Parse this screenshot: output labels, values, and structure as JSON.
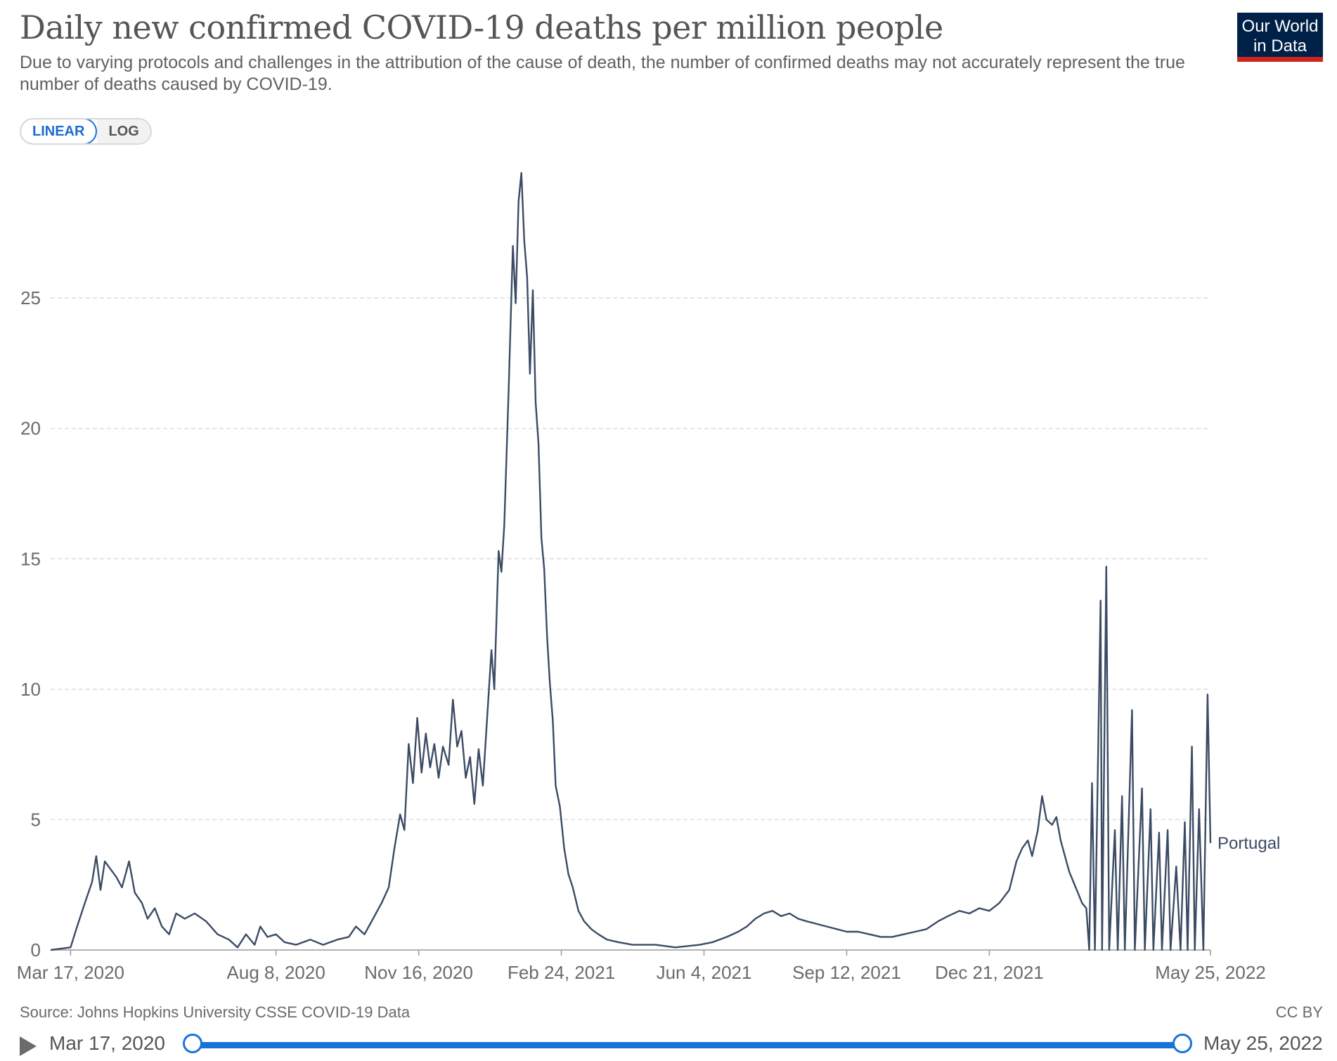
{
  "header": {
    "title": "Daily new confirmed COVID-19 deaths per million people",
    "subtitle": "Due to varying protocols and challenges in the attribution of the cause of death, the number of confirmed deaths may not accurately represent the true number of deaths caused by COVID-19.",
    "logo_line1": "Our World",
    "logo_line2": "in Data"
  },
  "scale_toggle": {
    "linear_label": "LINEAR",
    "log_label": "LOG",
    "selected": "LINEAR"
  },
  "footer": {
    "source": "Source: Johns Hopkins University CSSE COVID-19 Data",
    "license": "CC BY"
  },
  "timeline": {
    "start_label": "Mar 17, 2020",
    "end_label": "May 25, 2022"
  },
  "colors": {
    "line": "#3b4b64",
    "grid": "#dddddd",
    "accent": "#1a73d9",
    "logo_bg": "#002147",
    "logo_bar": "#ce261e"
  },
  "chart_data": {
    "type": "line",
    "x_axis": {
      "type": "date",
      "start": "2020-03-03",
      "end": "2022-05-25",
      "tick_labels": [
        "Mar 17, 2020",
        "Aug 8, 2020",
        "Nov 16, 2020",
        "Feb 24, 2021",
        "Jun 4, 2021",
        "Sep 12, 2021",
        "Dec 21, 2021",
        "May 25, 2022"
      ],
      "tick_dates": [
        "2020-03-17",
        "2020-08-08",
        "2020-11-16",
        "2021-02-24",
        "2021-06-04",
        "2021-09-12",
        "2021-12-21",
        "2022-05-25"
      ]
    },
    "y_axis": {
      "ticks": [
        0,
        5,
        10,
        15,
        20,
        25
      ],
      "ylim": [
        0,
        29.8
      ],
      "grid": true,
      "scale": "linear"
    },
    "series": [
      {
        "name": "Portugal",
        "color": "#3b4b64",
        "points": [
          [
            "2020-03-03",
            0
          ],
          [
            "2020-03-17",
            0.1
          ],
          [
            "2020-03-21",
            0.8
          ],
          [
            "2020-03-27",
            1.8
          ],
          [
            "2020-04-01",
            2.6
          ],
          [
            "2020-04-04",
            3.6
          ],
          [
            "2020-04-07",
            2.3
          ],
          [
            "2020-04-10",
            3.4
          ],
          [
            "2020-04-14",
            3.1
          ],
          [
            "2020-04-18",
            2.8
          ],
          [
            "2020-04-22",
            2.4
          ],
          [
            "2020-04-27",
            3.4
          ],
          [
            "2020-05-01",
            2.2
          ],
          [
            "2020-05-06",
            1.8
          ],
          [
            "2020-05-10",
            1.2
          ],
          [
            "2020-05-15",
            1.6
          ],
          [
            "2020-05-20",
            0.9
          ],
          [
            "2020-05-25",
            0.6
          ],
          [
            "2020-05-30",
            1.4
          ],
          [
            "2020-06-05",
            1.2
          ],
          [
            "2020-06-12",
            1.4
          ],
          [
            "2020-06-20",
            1.1
          ],
          [
            "2020-06-28",
            0.6
          ],
          [
            "2020-07-06",
            0.4
          ],
          [
            "2020-07-12",
            0.1
          ],
          [
            "2020-07-18",
            0.6
          ],
          [
            "2020-07-24",
            0.2
          ],
          [
            "2020-07-28",
            0.9
          ],
          [
            "2020-08-02",
            0.5
          ],
          [
            "2020-08-08",
            0.6
          ],
          [
            "2020-08-14",
            0.3
          ],
          [
            "2020-08-22",
            0.2
          ],
          [
            "2020-09-01",
            0.4
          ],
          [
            "2020-09-10",
            0.2
          ],
          [
            "2020-09-20",
            0.4
          ],
          [
            "2020-09-28",
            0.5
          ],
          [
            "2020-10-03",
            0.9
          ],
          [
            "2020-10-09",
            0.6
          ],
          [
            "2020-10-15",
            1.2
          ],
          [
            "2020-10-21",
            1.8
          ],
          [
            "2020-10-26",
            2.4
          ],
          [
            "2020-10-30",
            3.9
          ],
          [
            "2020-11-03",
            5.2
          ],
          [
            "2020-11-06",
            4.6
          ],
          [
            "2020-11-09",
            7.9
          ],
          [
            "2020-11-12",
            6.4
          ],
          [
            "2020-11-15",
            8.9
          ],
          [
            "2020-11-18",
            6.8
          ],
          [
            "2020-11-21",
            8.3
          ],
          [
            "2020-11-24",
            7.0
          ],
          [
            "2020-11-27",
            7.9
          ],
          [
            "2020-11-30",
            6.6
          ],
          [
            "2020-12-03",
            7.8
          ],
          [
            "2020-12-07",
            7.1
          ],
          [
            "2020-12-10",
            9.6
          ],
          [
            "2020-12-13",
            7.8
          ],
          [
            "2020-12-16",
            8.4
          ],
          [
            "2020-12-19",
            6.6
          ],
          [
            "2020-12-22",
            7.4
          ],
          [
            "2020-12-25",
            5.6
          ],
          [
            "2020-12-28",
            7.7
          ],
          [
            "2020-12-31",
            6.3
          ],
          [
            "2021-01-03",
            8.9
          ],
          [
            "2021-01-06",
            11.5
          ],
          [
            "2021-01-08",
            10.0
          ],
          [
            "2021-01-11",
            15.3
          ],
          [
            "2021-01-13",
            14.5
          ],
          [
            "2021-01-15",
            16.3
          ],
          [
            "2021-01-18",
            21.4
          ],
          [
            "2021-01-21",
            27.0
          ],
          [
            "2021-01-23",
            24.8
          ],
          [
            "2021-01-25",
            28.7
          ],
          [
            "2021-01-27",
            29.8
          ],
          [
            "2021-01-29",
            27.2
          ],
          [
            "2021-01-31",
            25.8
          ],
          [
            "2021-02-02",
            22.1
          ],
          [
            "2021-02-04",
            25.3
          ],
          [
            "2021-02-06",
            21.0
          ],
          [
            "2021-02-08",
            19.4
          ],
          [
            "2021-02-10",
            15.8
          ],
          [
            "2021-02-12",
            14.6
          ],
          [
            "2021-02-14",
            12.0
          ],
          [
            "2021-02-16",
            10.2
          ],
          [
            "2021-02-18",
            8.8
          ],
          [
            "2021-02-20",
            6.3
          ],
          [
            "2021-02-23",
            5.5
          ],
          [
            "2021-02-26",
            3.9
          ],
          [
            "2021-03-01",
            2.9
          ],
          [
            "2021-03-04",
            2.4
          ],
          [
            "2021-03-08",
            1.5
          ],
          [
            "2021-03-12",
            1.1
          ],
          [
            "2021-03-17",
            0.8
          ],
          [
            "2021-03-22",
            0.6
          ],
          [
            "2021-03-28",
            0.4
          ],
          [
            "2021-04-05",
            0.3
          ],
          [
            "2021-04-15",
            0.2
          ],
          [
            "2021-05-01",
            0.2
          ],
          [
            "2021-05-15",
            0.1
          ],
          [
            "2021-06-01",
            0.2
          ],
          [
            "2021-06-10",
            0.3
          ],
          [
            "2021-06-20",
            0.5
          ],
          [
            "2021-06-28",
            0.7
          ],
          [
            "2021-07-04",
            0.9
          ],
          [
            "2021-07-10",
            1.2
          ],
          [
            "2021-07-16",
            1.4
          ],
          [
            "2021-07-22",
            1.5
          ],
          [
            "2021-07-28",
            1.3
          ],
          [
            "2021-08-03",
            1.4
          ],
          [
            "2021-08-09",
            1.2
          ],
          [
            "2021-08-15",
            1.1
          ],
          [
            "2021-08-22",
            1.0
          ],
          [
            "2021-08-29",
            0.9
          ],
          [
            "2021-09-05",
            0.8
          ],
          [
            "2021-09-12",
            0.7
          ],
          [
            "2021-09-20",
            0.7
          ],
          [
            "2021-09-28",
            0.6
          ],
          [
            "2021-10-06",
            0.5
          ],
          [
            "2021-10-14",
            0.5
          ],
          [
            "2021-10-22",
            0.6
          ],
          [
            "2021-10-30",
            0.7
          ],
          [
            "2021-11-07",
            0.8
          ],
          [
            "2021-11-15",
            1.1
          ],
          [
            "2021-11-22",
            1.3
          ],
          [
            "2021-11-30",
            1.5
          ],
          [
            "2021-12-07",
            1.4
          ],
          [
            "2021-12-14",
            1.6
          ],
          [
            "2021-12-21",
            1.5
          ],
          [
            "2021-12-28",
            1.8
          ],
          [
            "2022-01-04",
            2.3
          ],
          [
            "2022-01-09",
            3.4
          ],
          [
            "2022-01-13",
            3.9
          ],
          [
            "2022-01-17",
            4.2
          ],
          [
            "2022-01-20",
            3.6
          ],
          [
            "2022-01-24",
            4.6
          ],
          [
            "2022-01-27",
            5.9
          ],
          [
            "2022-01-30",
            5.0
          ],
          [
            "2022-02-03",
            4.8
          ],
          [
            "2022-02-06",
            5.1
          ],
          [
            "2022-02-09",
            4.2
          ],
          [
            "2022-02-12",
            3.6
          ],
          [
            "2022-02-15",
            3.0
          ],
          [
            "2022-02-18",
            2.6
          ],
          [
            "2022-02-21",
            2.2
          ],
          [
            "2022-02-24",
            1.8
          ],
          [
            "2022-02-27",
            1.6
          ],
          [
            "2022-03-01",
            0
          ],
          [
            "2022-03-03",
            6.4
          ],
          [
            "2022-03-05",
            0
          ],
          [
            "2022-03-09",
            13.4
          ],
          [
            "2022-03-10",
            0
          ],
          [
            "2022-03-13",
            14.7
          ],
          [
            "2022-03-15",
            0
          ],
          [
            "2022-03-19",
            4.6
          ],
          [
            "2022-03-21",
            0
          ],
          [
            "2022-03-24",
            5.9
          ],
          [
            "2022-03-26",
            0
          ],
          [
            "2022-03-31",
            9.2
          ],
          [
            "2022-04-02",
            0
          ],
          [
            "2022-04-07",
            6.2
          ],
          [
            "2022-04-09",
            0
          ],
          [
            "2022-04-13",
            5.4
          ],
          [
            "2022-04-15",
            0
          ],
          [
            "2022-04-19",
            4.5
          ],
          [
            "2022-04-21",
            0
          ],
          [
            "2022-04-25",
            4.6
          ],
          [
            "2022-04-27",
            0
          ],
          [
            "2022-05-01",
            3.2
          ],
          [
            "2022-05-04",
            0
          ],
          [
            "2022-05-07",
            4.9
          ],
          [
            "2022-05-09",
            0
          ],
          [
            "2022-05-12",
            7.8
          ],
          [
            "2022-05-14",
            0
          ],
          [
            "2022-05-17",
            5.4
          ],
          [
            "2022-05-20",
            0
          ],
          [
            "2022-05-23",
            9.8
          ],
          [
            "2022-05-25",
            4.1
          ]
        ]
      }
    ]
  }
}
